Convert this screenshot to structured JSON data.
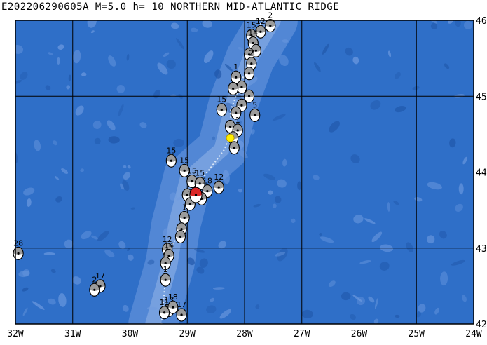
{
  "title": "E202206290605A  M=5.0  h= 10  NORTHERN MID-ATLANTIC RIDGE",
  "map": {
    "lon_range": [
      -32,
      -24
    ],
    "lat_range": [
      42,
      46
    ],
    "lon_tick_labels": [
      "32W",
      "31W",
      "30W",
      "29W",
      "28W",
      "27W",
      "26W",
      "25W",
      "24W"
    ],
    "lat_tick_labels": [
      "46N",
      "45N",
      "44N",
      "43N",
      "42N"
    ],
    "ocean_color": "#2f6fc8",
    "ridge_color": "#5f8fd9",
    "grid_color": "#000000",
    "plate_boundary_color": "#d8e6f8",
    "mainshock_color": "#d40000",
    "epicenter_color": "#ffee00"
  },
  "mechanisms": [
    {
      "lon": -27.55,
      "lat": 45.93,
      "label": "2"
    },
    {
      "lon": -27.72,
      "lat": 45.85,
      "label": "12"
    },
    {
      "lon": -27.88,
      "lat": 45.8,
      "label": "15"
    },
    {
      "lon": -27.85,
      "lat": 45.7,
      "label": "14"
    },
    {
      "lon": -27.8,
      "lat": 45.6,
      "label": ""
    },
    {
      "lon": -27.92,
      "lat": 45.55,
      "label": ""
    },
    {
      "lon": -27.88,
      "lat": 45.43,
      "label": "2"
    },
    {
      "lon": -27.92,
      "lat": 45.3,
      "label": ""
    },
    {
      "lon": -28.15,
      "lat": 45.25,
      "label": "1"
    },
    {
      "lon": -28.05,
      "lat": 45.12,
      "label": ""
    },
    {
      "lon": -28.2,
      "lat": 45.1,
      "label": ""
    },
    {
      "lon": -27.92,
      "lat": 45.0,
      "label": ""
    },
    {
      "lon": -28.05,
      "lat": 44.88,
      "label": ""
    },
    {
      "lon": -28.4,
      "lat": 44.82,
      "label": "15"
    },
    {
      "lon": -28.15,
      "lat": 44.78,
      "label": ""
    },
    {
      "lon": -27.82,
      "lat": 44.75,
      "label": "5"
    },
    {
      "lon": -28.25,
      "lat": 44.6,
      "label": ""
    },
    {
      "lon": -28.12,
      "lat": 44.55,
      "label": "1"
    },
    {
      "lon": -28.2,
      "lat": 44.45,
      "label": ""
    },
    {
      "lon": -28.18,
      "lat": 44.32,
      "label": ""
    },
    {
      "lon": -29.28,
      "lat": 44.15,
      "label": "15"
    },
    {
      "lon": -29.05,
      "lat": 44.02,
      "label": "15"
    },
    {
      "lon": -28.92,
      "lat": 43.88,
      "label": "15"
    },
    {
      "lon": -28.78,
      "lat": 43.85,
      "label": "15"
    },
    {
      "lon": -28.45,
      "lat": 43.8,
      "label": "12"
    },
    {
      "lon": -28.65,
      "lat": 43.75,
      "label": "18"
    },
    {
      "lon": -29.0,
      "lat": 43.7,
      "label": ""
    },
    {
      "lon": -28.75,
      "lat": 43.65,
      "label": ""
    },
    {
      "lon": -28.95,
      "lat": 43.58,
      "label": "1"
    },
    {
      "lon": -29.05,
      "lat": 43.4,
      "label": "1"
    },
    {
      "lon": -29.1,
      "lat": 43.25,
      "label": ""
    },
    {
      "lon": -29.12,
      "lat": 43.15,
      "label": ""
    },
    {
      "lon": -29.35,
      "lat": 42.98,
      "label": "12"
    },
    {
      "lon": -29.32,
      "lat": 42.9,
      "label": "14"
    },
    {
      "lon": -29.38,
      "lat": 42.8,
      "label": ""
    },
    {
      "lon": -29.38,
      "lat": 42.58,
      "label": "1"
    },
    {
      "lon": -29.32,
      "lat": 42.18,
      "label": "13"
    },
    {
      "lon": -29.25,
      "lat": 42.22,
      "label": "18"
    },
    {
      "lon": -29.4,
      "lat": 42.15,
      "label": "11"
    },
    {
      "lon": -29.1,
      "lat": 42.12,
      "label": "17"
    },
    {
      "lon": -30.52,
      "lat": 42.5,
      "label": "17"
    },
    {
      "lon": -30.62,
      "lat": 42.45,
      "label": "2"
    },
    {
      "lon": -31.95,
      "lat": 42.93,
      "label": "28"
    }
  ],
  "mainshock": {
    "lon": -28.85,
    "lat": 43.7
  },
  "epicenter": {
    "lon": -28.25,
    "lat": 44.45
  }
}
